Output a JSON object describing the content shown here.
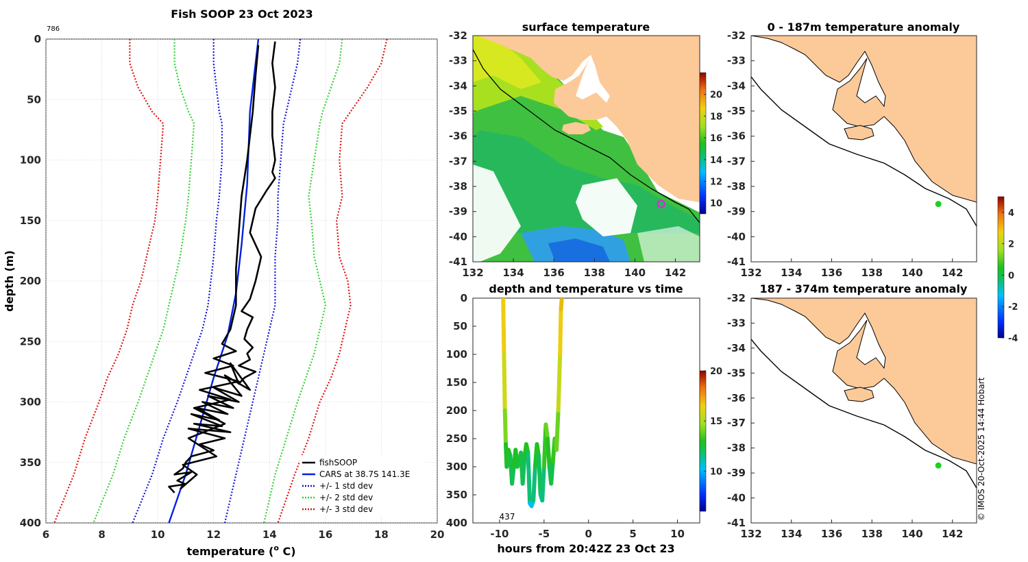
{
  "colors": {
    "fishsoop": "#000000",
    "cars": "#0020e0",
    "std1": "#1010e0",
    "std2": "#30d030",
    "std3": "#e01010",
    "land": "#fcc999",
    "ocean_missing": "#ffffff",
    "grid": "#c8c8c8",
    "marker_green": "#20d020",
    "marker_magenta": "#d030d0"
  },
  "chart_data": [
    {
      "id": "profile",
      "type": "line",
      "title": "Fish SOOP 23 Oct 2023",
      "corner_label": "786",
      "xlabel": "temperature (",
      "xlabel_sup": "o",
      "xlabel_unit": " C)",
      "ylabel": "depth (m)",
      "xlim": [
        6,
        20
      ],
      "ylim": [
        0,
        400
      ],
      "y_reversed": true,
      "xticks": [
        6,
        8,
        10,
        12,
        14,
        16,
        18,
        20
      ],
      "yticks": [
        0,
        50,
        100,
        150,
        200,
        250,
        300,
        350,
        400
      ],
      "grid": true,
      "legend_position": "bottom-right",
      "legend": [
        "fishSOOP",
        "CARS at 38.7S 141.3E",
        "+/- 1 std dev",
        "+/- 2 std dev",
        "+/- 3 std dev"
      ],
      "series": [
        {
          "name": "fishSOOP",
          "style": "solid",
          "width": 2.6,
          "color_key": "fishsoop",
          "x": [
            14.2,
            14.1,
            14.2,
            14.1,
            14.1,
            14.2,
            14.1,
            14.2,
            13.9,
            13.5,
            13.3,
            13.7,
            13.5,
            13.3,
            13.0,
            13.4,
            13.2,
            13.1,
            13.4,
            13.2,
            13.3,
            12.9,
            13.5,
            13.1,
            12.9,
            12.6,
            13.3,
            12.4,
            13.0,
            12.0,
            12.9,
            11.8,
            12.7,
            11.6,
            12.5,
            11.4,
            12.2,
            11.2,
            12.3,
            11.3,
            12.6,
            11.1,
            12.4,
            11.5,
            12.0,
            11.2,
            11.0,
            10.9,
            10.6,
            11.2,
            10.7,
            11.0,
            10.4,
            10.6
          ],
          "y": [
            2,
            20,
            40,
            60,
            80,
            100,
            110,
            115,
            125,
            140,
            160,
            180,
            200,
            215,
            225,
            230,
            240,
            248,
            255,
            260,
            265,
            270,
            275,
            280,
            285,
            268,
            290,
            278,
            295,
            288,
            300,
            295,
            305,
            300,
            310,
            305,
            315,
            310,
            320,
            318,
            325,
            322,
            330,
            335,
            340,
            345,
            350,
            355,
            360,
            358,
            365,
            368,
            370,
            375
          ]
        },
        {
          "name": "fishSOOP-b",
          "style": "solid",
          "width": 2.6,
          "color_key": "fishsoop",
          "x": [
            13.6,
            13.5,
            13.4,
            13.2,
            13.0,
            12.9,
            12.8,
            12.8,
            12.6,
            12.3,
            12.8,
            12.0,
            12.7,
            11.7,
            12.9,
            11.5,
            12.6,
            11.3,
            12.4,
            11.1,
            12.1,
            10.9,
            11.4,
            10.8
          ],
          "y": [
            5,
            30,
            60,
            100,
            130,
            160,
            190,
            220,
            240,
            252,
            258,
            264,
            270,
            276,
            283,
            290,
            298,
            305,
            318,
            330,
            345,
            352,
            360,
            372
          ]
        }
      ],
      "cars": {
        "x": [
          13.6,
          13.5,
          13.3,
          13.2,
          13.0,
          12.8,
          12.5,
          12.0,
          11.5,
          11.0,
          10.4
        ],
        "y": [
          0,
          20,
          60,
          120,
          170,
          210,
          245,
          280,
          320,
          360,
          400
        ]
      },
      "std_bounds": {
        "depth": [
          0,
          20,
          40,
          60,
          70,
          100,
          130,
          150,
          180,
          200,
          220,
          240,
          260,
          280,
          300,
          330,
          360,
          400
        ],
        "m3": [
          9.0,
          9.0,
          9.3,
          9.8,
          10.2,
          10.1,
          10.0,
          9.9,
          9.6,
          9.4,
          9.1,
          8.9,
          8.6,
          8.2,
          7.9,
          7.4,
          7.0,
          6.3
        ],
        "m2": [
          10.6,
          10.6,
          10.8,
          11.1,
          11.3,
          11.2,
          11.1,
          11.0,
          10.8,
          10.6,
          10.4,
          10.2,
          9.9,
          9.6,
          9.3,
          8.8,
          8.4,
          7.7
        ],
        "m1": [
          12.0,
          12.0,
          12.1,
          12.2,
          12.3,
          12.3,
          12.2,
          12.1,
          12.0,
          11.9,
          11.8,
          11.6,
          11.3,
          11.0,
          10.7,
          10.2,
          9.8,
          9.1
        ],
        "p1": [
          15.1,
          15.0,
          14.8,
          14.6,
          14.5,
          14.4,
          14.3,
          14.3,
          14.2,
          14.2,
          14.2,
          14.0,
          13.8,
          13.6,
          13.4,
          13.1,
          12.8,
          12.4
        ],
        "p2": [
          16.6,
          16.5,
          16.2,
          15.9,
          15.8,
          15.6,
          15.4,
          15.5,
          15.6,
          15.8,
          16.0,
          15.8,
          15.6,
          15.3,
          15.0,
          14.6,
          14.2,
          13.8
        ],
        "p3": [
          18.2,
          18.0,
          17.5,
          16.9,
          16.6,
          16.5,
          16.6,
          16.4,
          16.5,
          16.8,
          16.9,
          16.7,
          16.5,
          16.2,
          15.8,
          15.4,
          14.9,
          14.3
        ]
      }
    },
    {
      "id": "surface",
      "type": "heatmap",
      "title": "surface temperature",
      "xlim": [
        132,
        143.2
      ],
      "ylim": [
        -41,
        -32
      ],
      "xticks": [
        132,
        134,
        136,
        138,
        140,
        142
      ],
      "yticks": [
        -32,
        -33,
        -34,
        -35,
        -36,
        -37,
        -38,
        -39,
        -40,
        -41
      ],
      "colorbar": {
        "range": [
          9,
          22
        ],
        "ticks": [
          10,
          12,
          14,
          16,
          18,
          20
        ]
      },
      "marker": {
        "lon": 141.3,
        "lat": -38.7
      }
    },
    {
      "id": "timeseries",
      "type": "scatter",
      "title": "depth and temperature vs time",
      "xlabel": "hours from 20:42Z 23 Oct 23",
      "xlim": [
        -13,
        12.5
      ],
      "ylim": [
        0,
        400
      ],
      "y_reversed": true,
      "xticks": [
        -10,
        -5,
        0,
        5,
        10
      ],
      "yticks": [
        0,
        50,
        100,
        150,
        200,
        250,
        300,
        350,
        400
      ],
      "annotation": "437",
      "colorbar": {
        "range": [
          6,
          20
        ],
        "ticks": [
          10,
          15,
          20
        ]
      },
      "t": [
        -9.6,
        -9.5,
        -9.4,
        -9.3,
        -9.2,
        -9.1,
        -9.0,
        -8.8,
        -8.6,
        -8.4,
        -8.2,
        -8.0,
        -7.8,
        -7.6,
        -7.4,
        -7.2,
        -7.0,
        -6.8,
        -6.6,
        -6.4,
        -6.2,
        -6.0,
        -5.8,
        -5.6,
        -5.4,
        -5.2,
        -5.0,
        -4.8,
        -4.6,
        -4.4,
        -4.2,
        -4.0,
        -3.8,
        -3.6,
        -3.4,
        -3.2,
        -3.1,
        -3.0
      ],
      "depth": [
        0,
        100,
        200,
        260,
        300,
        290,
        270,
        280,
        330,
        300,
        270,
        300,
        290,
        275,
        330,
        285,
        260,
        275,
        365,
        370,
        360,
        300,
        260,
        280,
        350,
        360,
        300,
        225,
        250,
        300,
        330,
        290,
        250,
        270,
        200,
        100,
        20,
        0
      ],
      "temp": [
        17.5,
        17,
        16,
        14,
        13,
        13.5,
        14,
        13.5,
        12,
        13,
        14,
        13,
        13,
        13.5,
        12,
        13,
        14,
        13.5,
        10.5,
        10,
        11,
        13,
        14,
        13.5,
        11.5,
        11,
        13,
        15,
        14.5,
        13,
        12,
        13.5,
        14.5,
        14,
        15.5,
        17,
        17.5,
        17.5
      ]
    },
    {
      "id": "anomaly1",
      "type": "heatmap",
      "title": "0 - 187m temperature anomaly",
      "xlim": [
        132,
        143.2
      ],
      "ylim": [
        -41,
        -32
      ],
      "xticks": [
        132,
        134,
        136,
        138,
        140,
        142
      ],
      "yticks": [
        -32,
        -33,
        -34,
        -35,
        -36,
        -37,
        -38,
        -39,
        -40,
        -41
      ],
      "colorbar": {
        "range": [
          -4,
          5
        ],
        "ticks": [
          4,
          2,
          0,
          -2,
          -4
        ]
      },
      "marker": {
        "lon": 141.3,
        "lat": -38.7
      }
    },
    {
      "id": "anomaly2",
      "type": "heatmap",
      "title": "187 - 374m temperature anomaly",
      "xlim": [
        132,
        143.2
      ],
      "ylim": [
        -41,
        -32
      ],
      "xticks": [
        132,
        134,
        136,
        138,
        140,
        142
      ],
      "yticks": [
        -32,
        -33,
        -34,
        -35,
        -36,
        -37,
        -38,
        -39,
        -40,
        -41
      ],
      "marker": {
        "lon": 141.3,
        "lat": -38.7
      }
    }
  ],
  "copyright": "© IMOS 20-Oct-2025 14:44 Hobart"
}
